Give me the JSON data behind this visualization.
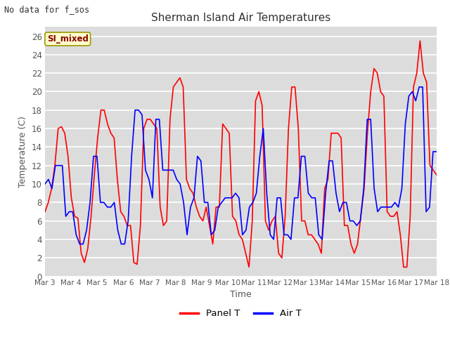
{
  "title": "Sherman Island Air Temperatures",
  "xlabel": "Time",
  "ylabel": "Temperature (C)",
  "note": "No data for f_sos",
  "legend_label": "SI_mixed",
  "ylim": [
    0,
    27
  ],
  "yticks": [
    0,
    2,
    4,
    6,
    8,
    10,
    12,
    14,
    16,
    18,
    20,
    22,
    24,
    26
  ],
  "xtick_labels": [
    "Mar 3",
    "Mar 4",
    "Mar 5",
    "Mar 6",
    "Mar 7",
    "Mar 8",
    "Mar 9",
    "Mar 10",
    "Mar 11",
    "Mar 12",
    "Mar 13",
    "Mar 14",
    "Mar 15",
    "Mar 16",
    "Mar 17",
    "Mar 18"
  ],
  "panel_T_color": "#FF0000",
  "air_T_color": "#0000FF",
  "bg_color": "#DCDCDC",
  "plot_bg_color": "#DCDCDC",
  "grid_color": "#FFFFFF",
  "line_width": 1.2,
  "panel_T": [
    7.0,
    8.0,
    9.5,
    12.0,
    16.0,
    16.2,
    15.5,
    13.0,
    8.5,
    6.5,
    6.3,
    2.5,
    1.5,
    3.0,
    6.5,
    11.0,
    15.0,
    18.0,
    18.0,
    16.5,
    15.5,
    15.0,
    10.5,
    7.0,
    6.5,
    5.5,
    5.5,
    1.5,
    1.3,
    5.5,
    16.0,
    17.0,
    17.0,
    16.5,
    16.0,
    7.5,
    5.5,
    6.0,
    17.0,
    20.5,
    21.0,
    21.5,
    20.5,
    10.5,
    9.5,
    9.0,
    7.5,
    6.5,
    6.0,
    7.5,
    5.5,
    3.5,
    7.5,
    7.5,
    16.5,
    16.0,
    15.5,
    6.5,
    6.0,
    4.5,
    4.0,
    2.5,
    1.0,
    6.0,
    19.0,
    20.0,
    18.5,
    6.0,
    5.0,
    6.0,
    6.5,
    2.5,
    2.0,
    6.5,
    16.0,
    20.5,
    20.5,
    16.0,
    6.0,
    6.0,
    4.5,
    4.5,
    4.0,
    3.5,
    2.5,
    9.5,
    10.5,
    15.5,
    15.5,
    15.5,
    15.0,
    5.5,
    5.5,
    3.5,
    2.5,
    3.5,
    6.5,
    9.5,
    15.5,
    20.0,
    22.5,
    22.0,
    20.0,
    19.5,
    7.0,
    6.5,
    6.5,
    7.0,
    4.5,
    1.0,
    1.0,
    6.5,
    20.5,
    22.0,
    25.5,
    22.0,
    21.0,
    12.0,
    11.5,
    11.0
  ],
  "air_T": [
    10.0,
    10.5,
    9.5,
    12.0,
    12.0,
    12.0,
    6.5,
    7.0,
    7.0,
    4.5,
    3.5,
    3.5,
    5.0,
    8.0,
    13.0,
    13.0,
    8.0,
    8.0,
    7.5,
    7.5,
    8.0,
    5.0,
    3.5,
    3.5,
    6.0,
    13.0,
    18.0,
    18.0,
    17.5,
    11.5,
    10.5,
    8.5,
    17.0,
    17.0,
    11.5,
    11.5,
    11.5,
    11.5,
    10.5,
    10.0,
    8.0,
    4.5,
    7.5,
    8.5,
    13.0,
    12.5,
    8.0,
    8.0,
    4.5,
    5.0,
    7.5,
    8.0,
    8.5,
    8.5,
    8.5,
    9.0,
    8.5,
    4.5,
    5.0,
    7.5,
    8.0,
    9.0,
    13.0,
    16.0,
    9.0,
    4.5,
    4.0,
    8.5,
    8.5,
    4.5,
    4.5,
    4.0,
    8.5,
    8.5,
    13.0,
    13.0,
    9.0,
    8.5,
    8.5,
    4.5,
    4.0,
    9.0,
    12.5,
    12.5,
    9.0,
    7.0,
    8.0,
    8.0,
    6.0,
    6.0,
    5.5,
    6.0,
    9.5,
    17.0,
    17.0,
    9.5,
    7.0,
    7.5,
    7.5,
    7.5,
    7.5,
    8.0,
    7.5,
    9.5,
    16.5,
    19.5,
    20.0,
    19.0,
    20.5,
    20.5,
    7.0,
    7.5,
    13.5,
    13.5
  ]
}
